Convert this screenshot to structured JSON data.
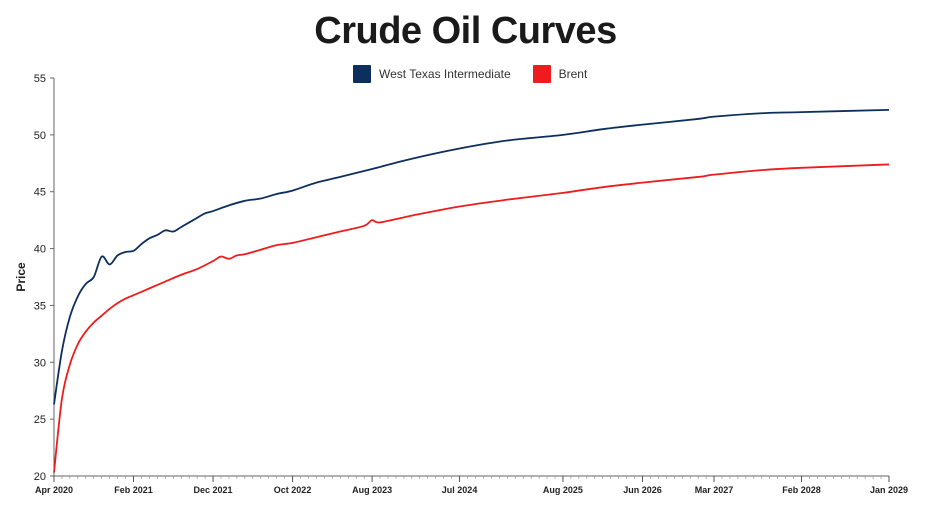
{
  "chart_data": {
    "type": "line",
    "title": "Crude Oil Curves",
    "xlabel": "",
    "ylabel": "Price",
    "ylim": [
      20,
      55
    ],
    "yticks": [
      20,
      25,
      30,
      35,
      40,
      45,
      50,
      55
    ],
    "xlim": [
      "Apr 2020",
      "Jan 2029"
    ],
    "xticks": [
      "Apr 2020",
      "Feb 2021",
      "Dec 2021",
      "Oct 2022",
      "Aug 2023",
      "Jul 2024",
      "Aug 2025",
      "Jun 2026",
      "Mar 2027",
      "Feb 2028",
      "Jan 2029"
    ],
    "grid": false,
    "legend_position": "top-center",
    "series": [
      {
        "name": "West Texas Intermediate",
        "color": "#0d2f5e",
        "x": [
          "Apr 2020",
          "May 2020",
          "Jun 2020",
          "Jul 2020",
          "Aug 2020",
          "Sep 2020",
          "Oct 2020",
          "Nov 2020",
          "Dec 2020",
          "Jan 2021",
          "Feb 2021",
          "Mar 2021",
          "Apr 2021",
          "May 2021",
          "Jun 2021",
          "Jul 2021",
          "Aug 2021",
          "Sep 2021",
          "Oct 2021",
          "Nov 2021",
          "Dec 2021",
          "Feb 2022",
          "Apr 2022",
          "Jun 2022",
          "Aug 2022",
          "Oct 2022",
          "Jan 2023",
          "Apr 2023",
          "Aug 2023",
          "Jan 2024",
          "Jul 2024",
          "Jan 2025",
          "Aug 2025",
          "Jan 2026",
          "Jun 2026",
          "Jan 2027",
          "Mar 2027",
          "Sep 2027",
          "Feb 2028",
          "Jan 2029"
        ],
        "values": [
          26.3,
          31.0,
          34.0,
          35.8,
          36.9,
          37.5,
          39.3,
          38.6,
          39.4,
          39.7,
          39.8,
          40.4,
          40.9,
          41.2,
          41.6,
          41.5,
          41.9,
          42.3,
          42.7,
          43.1,
          43.3,
          43.8,
          44.2,
          44.4,
          44.8,
          45.1,
          45.8,
          46.3,
          47.0,
          47.9,
          48.8,
          49.5,
          50.0,
          50.5,
          50.9,
          51.4,
          51.6,
          51.9,
          52.0,
          52.2
        ]
      },
      {
        "name": "Brent",
        "color": "#ee1c1c",
        "x": [
          "Apr 2020",
          "May 2020",
          "Jun 2020",
          "Jul 2020",
          "Aug 2020",
          "Sep 2020",
          "Oct 2020",
          "Nov 2020",
          "Dec 2020",
          "Jan 2021",
          "Feb 2021",
          "Apr 2021",
          "Jun 2021",
          "Aug 2021",
          "Oct 2021",
          "Dec 2021",
          "Jan 2022",
          "Feb 2022",
          "Mar 2022",
          "Apr 2022",
          "Jun 2022",
          "Aug 2022",
          "Oct 2022",
          "Jan 2023",
          "Apr 2023",
          "Jul 2023",
          "Aug 2023",
          "Sep 2023",
          "Jan 2024",
          "Jul 2024",
          "Jan 2025",
          "Aug 2025",
          "Jan 2026",
          "Jun 2026",
          "Jan 2027",
          "Mar 2027",
          "Sep 2027",
          "Feb 2028",
          "Jan 2029"
        ],
        "values": [
          20.3,
          26.8,
          29.8,
          31.6,
          32.7,
          33.5,
          34.1,
          34.7,
          35.2,
          35.6,
          35.9,
          36.5,
          37.1,
          37.7,
          38.2,
          38.9,
          39.3,
          39.1,
          39.4,
          39.5,
          39.9,
          40.3,
          40.5,
          41.0,
          41.5,
          42.0,
          42.5,
          42.3,
          42.9,
          43.7,
          44.3,
          44.9,
          45.4,
          45.8,
          46.3,
          46.5,
          46.9,
          47.1,
          47.4
        ]
      }
    ]
  }
}
